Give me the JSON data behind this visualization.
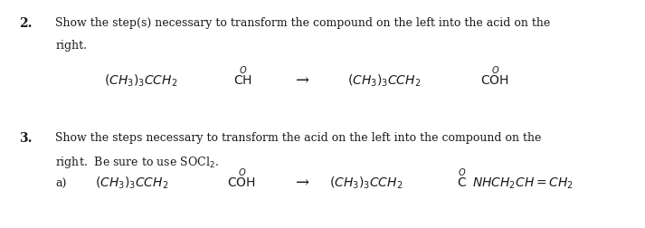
{
  "background_color": "#ffffff",
  "figsize": [
    7.13,
    2.52
  ],
  "dpi": 100,
  "q2_label": "2.",
  "q2_text_line1": "Show the step(s) necessary to transform the compound on the left into the acid on the",
  "q2_text_line2": "right.",
  "q2_left_formula_main": "(CH$_3$)$_3$CCH$_2$CH",
  "q2_left_formula_O": "O",
  "q2_right_formula_main": "(CH$_3$)$_3$CCH$_2$COH",
  "q2_right_formula_O": "O",
  "q2_arrow": "→",
  "q3_label": "3.",
  "q3_text_line1": "Show the steps necessary to transform the acid on the left into the compound on the",
  "q3_text_line2": "right.  Be sure to use SOCl$_2$.",
  "q3_a_label": "a)",
  "q3_left_formula_main": "(CH$_3$)$_3$CCH$_2$COH",
  "q3_left_formula_O": "O",
  "q3_right_formula_main": "(CH$_3$)$_3$CCH$_2$CNHCH$_2$CH=CH$_2$",
  "q3_right_formula_O": "O",
  "q3_arrow": "→",
  "text_color": "#1a1a1a",
  "font_size_body": 9,
  "font_size_formula": 10,
  "font_size_label": 10,
  "font_family": "serif"
}
